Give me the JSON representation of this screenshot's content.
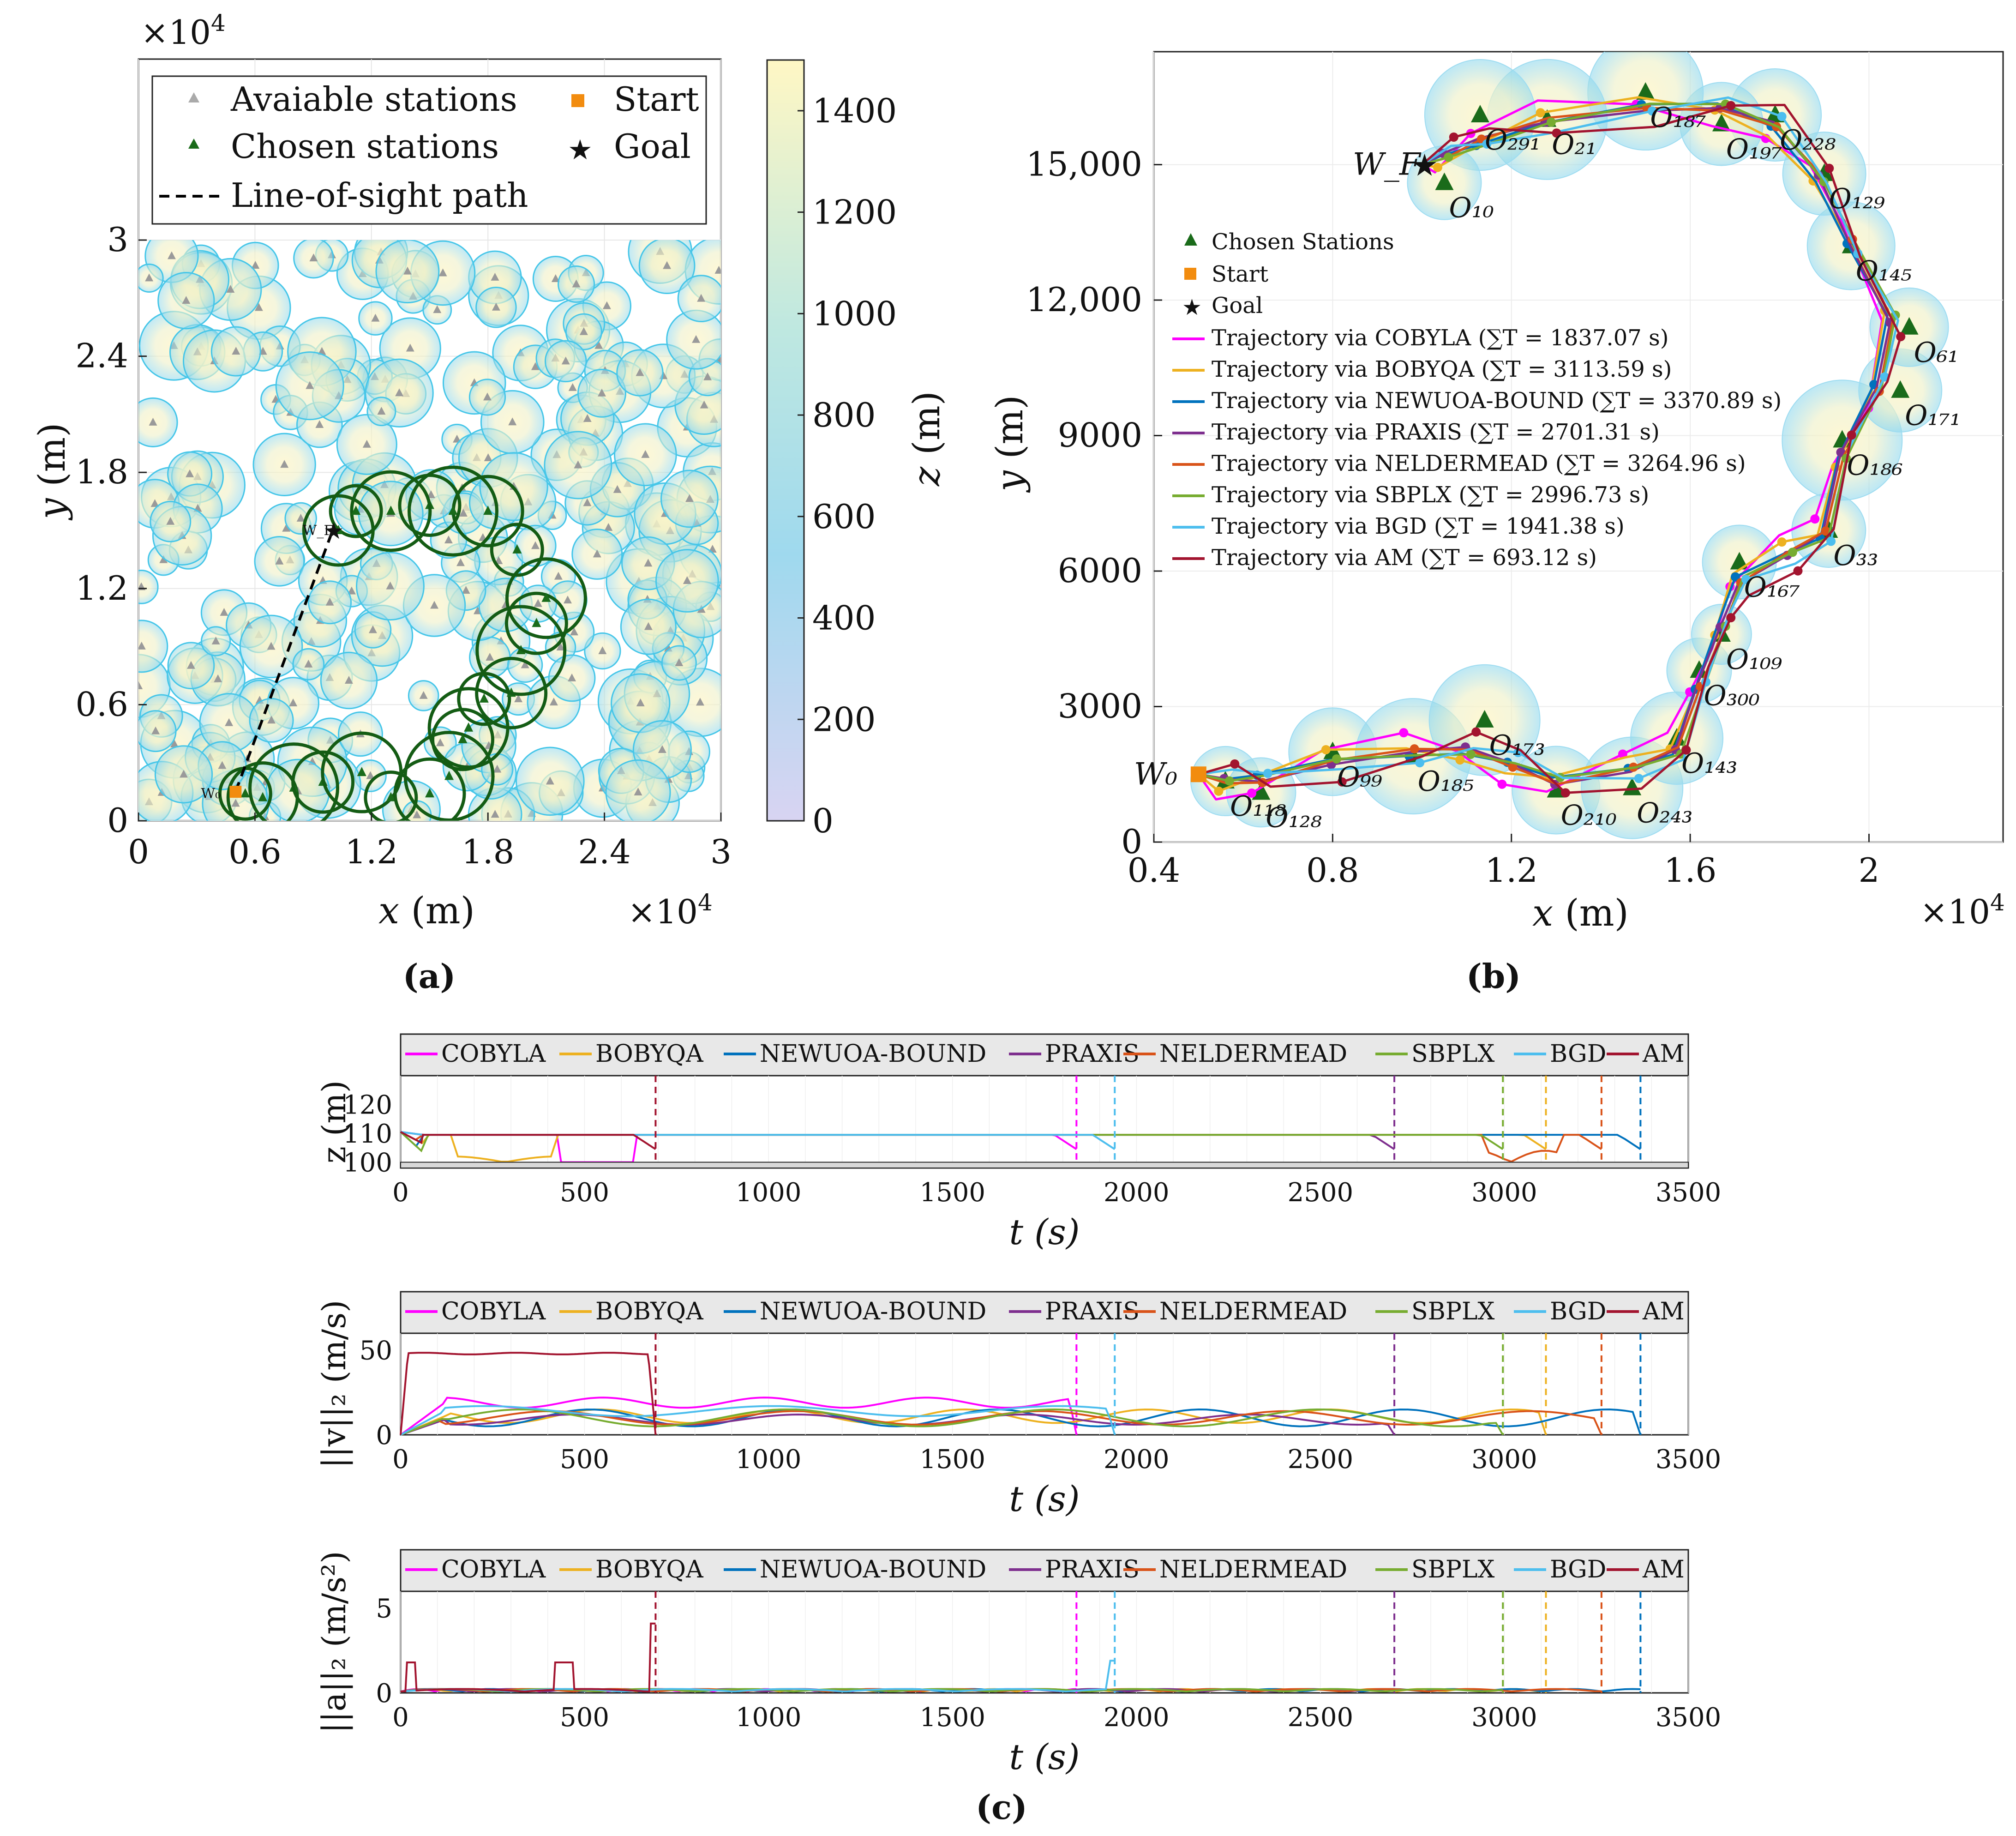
{
  "panel_labels": [
    "(a)",
    "(b)",
    "(c)"
  ],
  "colors": {
    "COBYLA": "#ff00ff",
    "BOBYQA": "#edb120",
    "NEWUOA-BOUND": "#0072bd",
    "PRAXIS": "#7e2f8e",
    "NELDERMEAD": "#d95319",
    "SBPLX": "#77ac30",
    "BGD": "#4dbeee",
    "AM": "#a2142f",
    "chosen": "#1a6b1a",
    "start": "#f28c0f",
    "goal": "#ff00ff"
  },
  "chart_data": [
    {
      "id": "a",
      "type": "scatter",
      "title": "",
      "xlabel": "x (m)",
      "ylabel": "y (m)",
      "xlim": [
        0,
        3
      ],
      "ylim": [
        0,
        3
      ],
      "exponent": "×10^4",
      "xticks": [
        "0",
        "0.6",
        "1.2",
        "1.8",
        "2.4",
        "3"
      ],
      "yticks": [
        "0",
        "0.6",
        "1.2",
        "1.8",
        "2.4",
        "3"
      ],
      "colorbar": {
        "label": "z (m)",
        "ticks": [
          "0",
          "200",
          "400",
          "600",
          "800",
          "1000",
          "1200",
          "1400"
        ],
        "range": [
          0,
          1500
        ]
      },
      "legend": [
        "Avaiable stations",
        "Chosen stations",
        "Line-of-sight path",
        "Start",
        "Goal"
      ],
      "start": [
        0.5,
        0.15
      ],
      "goal": [
        1.0,
        1.5
      ],
      "start_label": "W₀",
      "goal_label": "W_F",
      "chosen_stations": [
        [
          0.55,
          0.14
        ],
        [
          0.64,
          0.12
        ],
        [
          0.8,
          0.17
        ],
        [
          0.95,
          0.2
        ],
        [
          1.15,
          0.25
        ],
        [
          1.3,
          0.12
        ],
        [
          1.5,
          0.14
        ],
        [
          1.6,
          0.23
        ],
        [
          1.67,
          0.42
        ],
        [
          1.7,
          0.48
        ],
        [
          1.78,
          0.63
        ],
        [
          1.92,
          0.66
        ],
        [
          1.97,
          0.88
        ],
        [
          2.05,
          1.02
        ],
        [
          2.1,
          1.15
        ],
        [
          1.95,
          1.4
        ],
        [
          1.8,
          1.6
        ],
        [
          1.62,
          1.6
        ],
        [
          1.5,
          1.63
        ],
        [
          1.3,
          1.6
        ],
        [
          1.12,
          1.6
        ],
        [
          1.03,
          1.5
        ]
      ],
      "line_of_sight": [
        [
          0.5,
          0.15
        ],
        [
          1.0,
          1.5
        ]
      ]
    },
    {
      "id": "b",
      "type": "line",
      "title": "",
      "xlabel": "x (m)",
      "ylabel": "y (m)",
      "xlim": [
        0.4,
        2.3
      ],
      "ylim": [
        0,
        17500
      ],
      "exponent": "×10^4",
      "xticks": [
        "0.4",
        "0.8",
        "1.2",
        "1.6",
        "2"
      ],
      "yticks": [
        "0",
        "3000",
        "6000",
        "9000",
        "12,000",
        "15,000"
      ],
      "start": [
        0.5,
        1500
      ],
      "goal": [
        1.0,
        15000
      ],
      "start_label": "W₀",
      "goal_label": "W_F",
      "legend": [
        "Chosen Stations",
        "Start",
        "Goal",
        "Trajectory via COBYLA (∑T = 1837.07 s)",
        "Trajectory via BOBYQA (∑T = 3113.59 s)",
        "Trajectory via NEWUOA-BOUND (∑T = 3370.89 s)",
        "Trajectory via PRAXIS (∑T = 2701.31 s)",
        "Trajectory via NELDERMEAD (∑T = 3264.96 s)",
        "Trajectory via SBPLX (∑T = 2996.73 s)",
        "Trajectory via BGD (∑T = 1941.38 s)",
        "Trajectory via AM (∑T = 693.12 s)"
      ],
      "stations": [
        {
          "label": "O₁₁₈",
          "x": 0.56,
          "y": 1350
        },
        {
          "label": "O₁₂₈",
          "x": 0.64,
          "y": 1100
        },
        {
          "label": "O₉₉",
          "x": 0.8,
          "y": 2000
        },
        {
          "label": "O₁₈₅",
          "x": 0.98,
          "y": 1900
        },
        {
          "label": "O₁₇₃",
          "x": 1.14,
          "y": 2700
        },
        {
          "label": "O₂₁₀",
          "x": 1.3,
          "y": 1150
        },
        {
          "label": "O₂₄₃",
          "x": 1.47,
          "y": 1200
        },
        {
          "label": "O₁₄₃",
          "x": 1.57,
          "y": 2300
        },
        {
          "label": "O₃₀₀",
          "x": 1.62,
          "y": 3800
        },
        {
          "label": "O₁₀₉",
          "x": 1.67,
          "y": 4600
        },
        {
          "label": "O₁₆₇",
          "x": 1.71,
          "y": 6200
        },
        {
          "label": "O₃₃",
          "x": 1.91,
          "y": 6900
        },
        {
          "label": "O₁₈₆",
          "x": 1.94,
          "y": 8900
        },
        {
          "label": "O₁₇₁",
          "x": 2.07,
          "y": 10000
        },
        {
          "label": "O₆₁",
          "x": 2.09,
          "y": 11400
        },
        {
          "label": "O₁₄₅",
          "x": 1.96,
          "y": 13200
        },
        {
          "label": "O₁₂₉",
          "x": 1.9,
          "y": 14800
        },
        {
          "label": "O₂₂₈",
          "x": 1.79,
          "y": 16100
        },
        {
          "label": "O₁₉₇",
          "x": 1.67,
          "y": 15900
        },
        {
          "label": "O₁₈₇",
          "x": 1.5,
          "y": 16600
        },
        {
          "label": "O₂₁",
          "x": 1.28,
          "y": 16000
        },
        {
          "label": "O₂₉₁",
          "x": 1.13,
          "y": 16100
        },
        {
          "label": "O₁₀",
          "x": 1.05,
          "y": 14600
        }
      ],
      "trajectory_time_totals": [
        {
          "name": "COBYLA",
          "total_s": 1837.07
        },
        {
          "name": "BOBYQA",
          "total_s": 3113.59
        },
        {
          "name": "NEWUOA-BOUND",
          "total_s": 3370.89
        },
        {
          "name": "PRAXIS",
          "total_s": 2701.31
        },
        {
          "name": "NELDERMEAD",
          "total_s": 3264.96
        },
        {
          "name": "SBPLX",
          "total_s": 2996.73
        },
        {
          "name": "BGD",
          "total_s": 1941.38
        },
        {
          "name": "AM",
          "total_s": 693.12
        }
      ]
    },
    {
      "id": "c1",
      "type": "line",
      "title": "",
      "xlabel": "t (s)",
      "ylabel": "z (m)",
      "xlim": [
        0,
        3500
      ],
      "ylim": [
        98,
        130
      ],
      "xticks": [
        "0",
        "500",
        "1000",
        "1500",
        "2000",
        "2500",
        "3000",
        "3500"
      ],
      "yticks": [
        "100",
        "110",
        "120"
      ],
      "legend": [
        "COBYLA",
        "BOBYQA",
        "NEWUOA-BOUND",
        "PRAXIS",
        "NELDERMEAD",
        "SBPLX",
        "BGD",
        "AM"
      ],
      "end_markers": [
        1837,
        3113,
        3370,
        2701,
        3264,
        2996,
        1941,
        693
      ]
    },
    {
      "id": "c2",
      "type": "line",
      "title": "",
      "xlabel": "t (s)",
      "ylabel": "||v||₂ (m/s)",
      "xlim": [
        0,
        3500
      ],
      "ylim": [
        0,
        60
      ],
      "xticks": [
        "0",
        "500",
        "1000",
        "1500",
        "2000",
        "2500",
        "3000",
        "3500"
      ],
      "yticks": [
        "0",
        "50"
      ],
      "legend": [
        "COBYLA",
        "BOBYQA",
        "NEWUOA-BOUND",
        "PRAXIS",
        "NELDERMEAD",
        "SBPLX",
        "BGD",
        "AM"
      ],
      "end_markers": [
        1837,
        3113,
        3370,
        2701,
        3264,
        2996,
        1941,
        693
      ]
    },
    {
      "id": "c3",
      "type": "line",
      "title": "",
      "xlabel": "t (s)",
      "ylabel": "||a||₂ (m/s²)",
      "xlim": [
        0,
        3500
      ],
      "ylim": [
        0,
        6
      ],
      "xticks": [
        "0",
        "500",
        "1000",
        "1500",
        "2000",
        "2500",
        "3000",
        "3500"
      ],
      "yticks": [
        "0",
        "5"
      ],
      "legend": [
        "COBYLA",
        "BOBYQA",
        "NEWUOA-BOUND",
        "PRAXIS",
        "NELDERMEAD",
        "SBPLX",
        "BGD",
        "AM"
      ],
      "end_markers": [
        1837,
        3113,
        3370,
        2701,
        3264,
        2996,
        1941,
        693
      ]
    }
  ]
}
